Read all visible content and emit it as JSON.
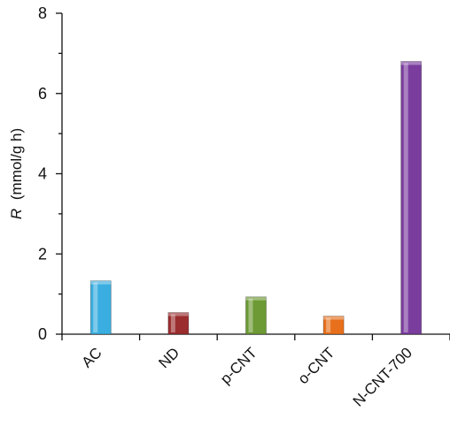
{
  "chart_data": {
    "type": "bar",
    "categories": [
      "AC",
      "ND",
      "p-CNT",
      "o-CNT",
      "N-CNT-700"
    ],
    "values": [
      1.33,
      0.54,
      0.93,
      0.45,
      6.8
    ],
    "colors": [
      "#3aaee0",
      "#9b2d2f",
      "#6d9a34",
      "#e8701c",
      "#7a3d9e"
    ],
    "ylabel_symbol": "R",
    "ylabel_unit": "(mmol/g h)",
    "ylim": [
      0,
      8
    ],
    "yticks": [
      0,
      2,
      4,
      6,
      8
    ],
    "grid": false,
    "legend": "none"
  }
}
